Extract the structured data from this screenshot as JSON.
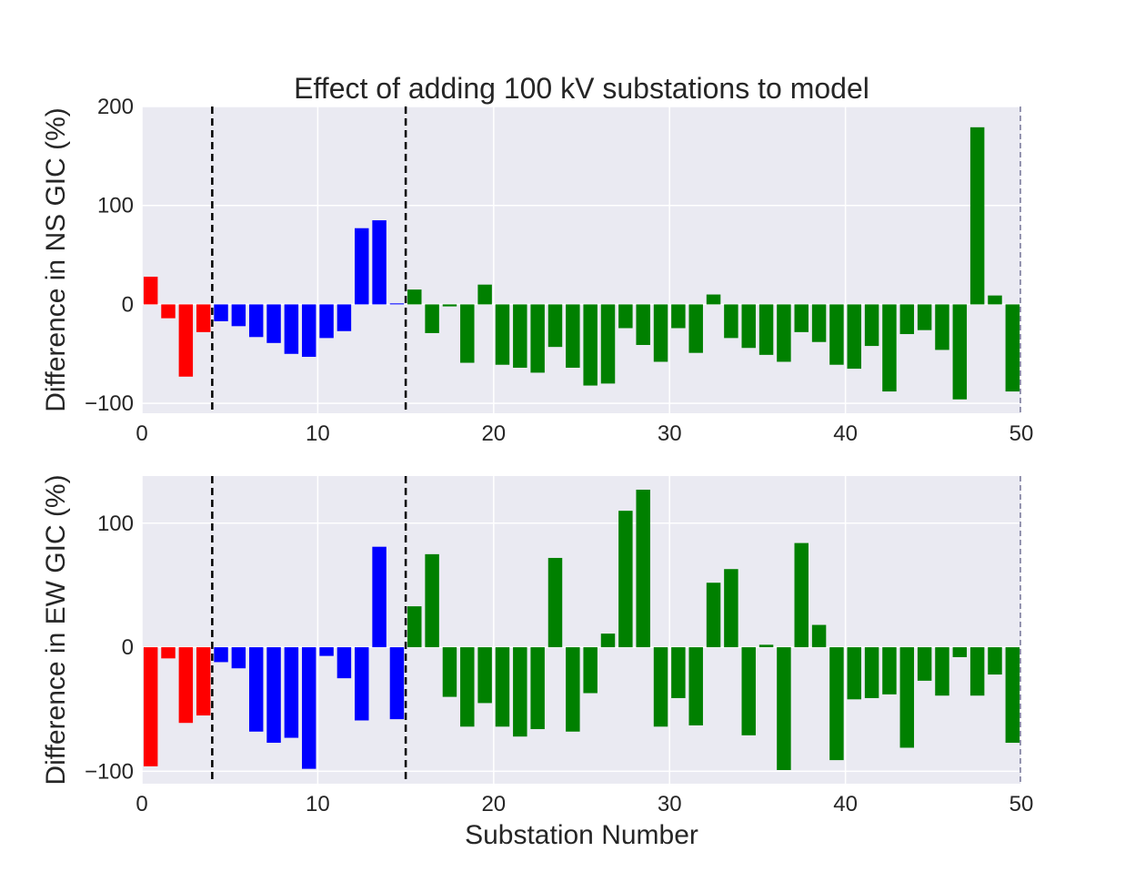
{
  "chart_data": [
    {
      "type": "bar",
      "title": "Effect of adding 100 kV substations to model",
      "xlabel": "",
      "ylabel": "Difference in NS GIC (%)",
      "xlim": [
        0,
        50
      ],
      "ylim": [
        -110,
        200
      ],
      "xticks": [
        "0",
        "10",
        "20",
        "30",
        "40",
        "50"
      ],
      "yticks": [
        "−100",
        "0",
        "100",
        "200"
      ],
      "vlines": [
        4,
        15
      ],
      "group_colors": {
        "red": "#ff0000",
        "blue": "#0000ff",
        "green": "#008000"
      },
      "x": [
        0,
        1,
        2,
        3,
        4,
        5,
        6,
        7,
        8,
        9,
        10,
        11,
        12,
        13,
        14,
        15,
        16,
        17,
        18,
        19,
        20,
        21,
        22,
        23,
        24,
        25,
        26,
        27,
        28,
        29,
        30,
        31,
        32,
        33,
        34,
        35,
        36,
        37,
        38,
        39,
        40,
        41,
        42,
        43,
        44,
        45,
        46,
        47,
        48,
        49
      ],
      "values": [
        28,
        -14,
        -73,
        -28,
        -17,
        -22,
        -33,
        -39,
        -50,
        -53,
        -34,
        -27,
        77,
        85,
        1,
        15,
        -29,
        -2,
        -59,
        20,
        -61,
        -64,
        -69,
        -43,
        -64,
        -82,
        -80,
        -24,
        -41,
        -58,
        -24,
        -49,
        10,
        -34,
        -44,
        -51,
        -58,
        -28,
        -38,
        -61,
        -65,
        -42,
        -88,
        -30,
        -26,
        -46,
        -96,
        179,
        9,
        -88
      ],
      "colors": [
        "red",
        "red",
        "red",
        "red",
        "blue",
        "blue",
        "blue",
        "blue",
        "blue",
        "blue",
        "blue",
        "blue",
        "blue",
        "blue",
        "blue",
        "green",
        "green",
        "green",
        "green",
        "green",
        "green",
        "green",
        "green",
        "green",
        "green",
        "green",
        "green",
        "green",
        "green",
        "green",
        "green",
        "green",
        "green",
        "green",
        "green",
        "green",
        "green",
        "green",
        "green",
        "green",
        "green",
        "green",
        "green",
        "green",
        "green",
        "green",
        "green",
        "green",
        "green",
        "green"
      ]
    },
    {
      "type": "bar",
      "title": "",
      "xlabel": "Substation Number",
      "ylabel": "Difference in EW GIC (%)",
      "xlim": [
        0,
        50
      ],
      "ylim": [
        -110,
        138
      ],
      "xticks": [
        "0",
        "10",
        "20",
        "30",
        "40",
        "50"
      ],
      "yticks": [
        "−100",
        "0",
        "100"
      ],
      "vlines": [
        4,
        15
      ],
      "group_colors": {
        "red": "#ff0000",
        "blue": "#0000ff",
        "green": "#008000"
      },
      "x": [
        0,
        1,
        2,
        3,
        4,
        5,
        6,
        7,
        8,
        9,
        10,
        11,
        12,
        13,
        14,
        15,
        16,
        17,
        18,
        19,
        20,
        21,
        22,
        23,
        24,
        25,
        26,
        27,
        28,
        29,
        30,
        31,
        32,
        33,
        34,
        35,
        36,
        37,
        38,
        39,
        40,
        41,
        42,
        43,
        44,
        45,
        46,
        47,
        48,
        49
      ],
      "values": [
        -96,
        -9,
        -61,
        -55,
        -12,
        -17,
        -68,
        -77,
        -73,
        -98,
        -7,
        -25,
        -59,
        81,
        -58,
        33,
        75,
        -40,
        -64,
        -45,
        -64,
        -72,
        -66,
        72,
        -68,
        -37,
        11,
        110,
        127,
        -64,
        -41,
        -63,
        52,
        63,
        -71,
        2,
        -99,
        84,
        18,
        -91,
        -42,
        -41,
        -38,
        -81,
        -27,
        -39,
        -8,
        -39,
        -22,
        -77
      ],
      "colors": [
        "red",
        "red",
        "red",
        "red",
        "blue",
        "blue",
        "blue",
        "blue",
        "blue",
        "blue",
        "blue",
        "blue",
        "blue",
        "blue",
        "blue",
        "green",
        "green",
        "green",
        "green",
        "green",
        "green",
        "green",
        "green",
        "green",
        "green",
        "green",
        "green",
        "green",
        "green",
        "green",
        "green",
        "green",
        "green",
        "green",
        "green",
        "green",
        "green",
        "green",
        "green",
        "green",
        "green",
        "green",
        "green",
        "green",
        "green",
        "green",
        "green",
        "green",
        "green",
        "green"
      ]
    }
  ]
}
